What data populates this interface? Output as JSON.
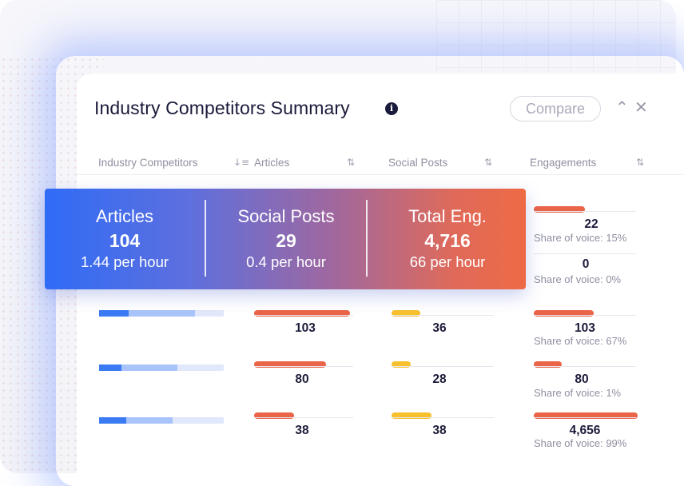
{
  "card": {
    "title": "Industry Competitors Summary",
    "info_icon": "info-icon",
    "compare_label": "Compare",
    "collapse_icon": "chevron-up-icon",
    "close_icon": "close-icon"
  },
  "columns": [
    {
      "label": "Industry Competitors",
      "sort_icon": "sort-descending-icon"
    },
    {
      "label": "Articles",
      "sort_icon": "sort-icon"
    },
    {
      "label": "Social Posts",
      "sort_icon": "sort-icon"
    },
    {
      "label": "Engagements",
      "sort_icon": "sort-icon"
    }
  ],
  "summary": {
    "articles": {
      "label": "Articles",
      "value": "104",
      "rate": "1.44 per hour"
    },
    "social_posts": {
      "label": "Social Posts",
      "value": "29",
      "rate": "0.4 per hour"
    },
    "total_eng": {
      "label": "Total Eng.",
      "value": "4,716",
      "rate": "66 per hour"
    }
  },
  "top_rows": [
    {
      "engagements": "22",
      "share": "Share of voice: 15%",
      "eng_fraction": 0.49
    },
    {
      "engagements": "0",
      "share": "Share of voice: 0%",
      "eng_fraction": 0
    }
  ],
  "rows": [
    {
      "competitor_fraction": 0.77,
      "competitor_dark_fraction": 0.24,
      "articles": "103",
      "articles_fraction": 0.98,
      "social_posts": "36",
      "social_fraction": 0.28,
      "engagements": "103",
      "share": "Share of voice: 67%",
      "eng_fraction": 0.58
    },
    {
      "competitor_fraction": 0.63,
      "competitor_dark_fraction": 0.18,
      "articles": "80",
      "articles_fraction": 0.74,
      "social_posts": "28",
      "social_fraction": 0.19,
      "engagements": "80",
      "share": "Share of voice: 1%",
      "eng_fraction": 0.27
    },
    {
      "competitor_fraction": 0.59,
      "competitor_dark_fraction": 0.22,
      "articles": "38",
      "articles_fraction": 0.41,
      "social_posts": "38",
      "social_fraction": 0.39,
      "engagements": "4,656",
      "share": "Share of voice: 99%",
      "eng_fraction": 1.0
    }
  ],
  "colors": {
    "orange": "#ea6448",
    "yellow": "#f7c12e",
    "blue_dark": "#3a7bf4",
    "blue_light": "#a9c3fb"
  }
}
